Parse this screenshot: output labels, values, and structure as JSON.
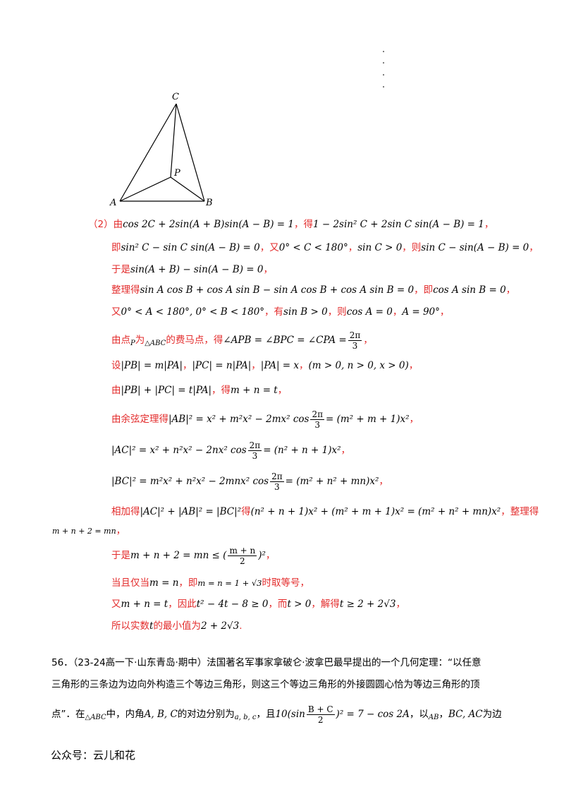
{
  "figure": {
    "label_C": "C",
    "label_P": "P",
    "label_A": "A",
    "label_B": "B"
  },
  "solution": {
    "l1_a": "（2）由",
    "l1_m1": "cos 2C + 2sin(A + B)sin(A − B) = 1",
    "l1_b": "，得",
    "l1_m2": "1 − 2sin² C + 2sin C sin(A − B) = 1",
    "l1_c": "，",
    "l2_a": "即",
    "l2_m1": "sin² C − sin C sin(A − B) = 0",
    "l2_b": "，又",
    "l2_m2": "0° < C < 180°",
    "l2_c": "，",
    "l2_m3": "sin C > 0",
    "l2_d": "，则",
    "l2_m4": "sin C − sin(A − B) = 0",
    "l2_e": "，",
    "l3_a": "于是",
    "l3_m1": "sin(A + B) − sin(A − B) = 0",
    "l3_b": "，",
    "l4_a": "整理得",
    "l4_m1": "sin A cos B + cos A sin B − sin A cos B + cos A sin B = 0",
    "l4_b": "，即",
    "l4_m2": "cos A sin B = 0",
    "l4_c": "，",
    "l5_a": "又",
    "l5_m1": "0° < A < 180°, 0° < B < 180°",
    "l5_b": "，有",
    "l5_m2": "sin B > 0",
    "l5_c": "，则",
    "l5_m3": "cos A = 0",
    "l5_d": "，",
    "l5_m4": "A = 90°",
    "l5_e": "，",
    "l6_a": "由点",
    "l6_m1": "P",
    "l6_b": "为",
    "l6_m2": "△ABC",
    "l6_c": "的费马点，得",
    "l6_m3": "∠APB = ∠BPC = ∠CPA =",
    "l6_num": "2π",
    "l6_den": "3",
    "l6_d": "，",
    "l7_a": "设",
    "l7_m1": "|PB| = m|PA|",
    "l7_b": "，",
    "l7_m2": "|PC| = n|PA|",
    "l7_c": "，",
    "l7_m3": "|PA| = x",
    "l7_d": "，",
    "l7_m4": "(m > 0, n > 0, x > 0)",
    "l7_e": "，",
    "l8_a": "由",
    "l8_m1": "|PB| + |PC| = t|PA|",
    "l8_b": "，得",
    "l8_m2": "m + n = t",
    "l8_c": "，",
    "l9_a": "由余弦定理得",
    "l9_m1": "|AB|² = x² + m²x² − 2mx² cos",
    "l9_num": "2π",
    "l9_den": "3",
    "l9_m2": "= (m² + m + 1)x²",
    "l9_b": "，",
    "l10_m1": "|AC|² = x² + n²x² − 2nx² cos",
    "l10_num": "2π",
    "l10_den": "3",
    "l10_m2": "= (n² + n + 1)x²",
    "l10_b": "，",
    "l11_m1": "|BC|² = m²x² + n²x² − 2mnx² cos",
    "l11_num": "2π",
    "l11_den": "3",
    "l11_m2": "= (m² + n² + mn)x²",
    "l11_b": "，",
    "l12_a": "相加得",
    "l12_m1": "|AC|² + |AB|² = |BC|²",
    "l12_b": "得",
    "l12_m2": "(n² + n + 1)x² + (m² + m + 1)x² = (m² + n² + mn)x²",
    "l12_c": "，整理得",
    "l13_m1": "m + n + 2 = mn",
    "l13_b": "，",
    "l14_a": "于是",
    "l14_m1": "m + n + 2 = mn ≤ (",
    "l14_num": "m + n",
    "l14_den": "2",
    "l14_m2": ")²",
    "l14_b": "，",
    "l15_a": "当且仅当",
    "l15_m1": "m = n",
    "l15_b": "，即",
    "l15_m2": "m = n = 1 + √3",
    "l15_c": "时取等号，",
    "l16_a": "又",
    "l16_m1": "m + n = t",
    "l16_b": "，因此",
    "l16_m2": "t² − 4t − 8 ≥ 0",
    "l16_c": "，而",
    "l16_m3": "t > 0",
    "l16_d": "，解得",
    "l16_m4": "t ≥ 2 + 2√3",
    "l16_e": "，",
    "l17_a": "所以实数",
    "l17_m1": "t",
    "l17_b": "的最小值为",
    "l17_m2": "2 + 2√3",
    "l17_c": "."
  },
  "question": {
    "q1": "56．（23-24高一下·山东青岛·期中）法国著名军事家拿破仑·波拿巴最早提出的一个几何定理：“以任意",
    "q2": "三角形的三条边为边向外构造三个等边三角形，则这三个等边三角形的外接圆圆心恰为等边三角形的顶",
    "q3_a": "点”．在",
    "q3_m1": "△ABC",
    "q3_b": "中，内角",
    "q3_m2": "A, B, C",
    "q3_c": "的对边分别为",
    "q3_m3": "a, b, c",
    "q3_d": "，且",
    "q3_m4a": "10(sin",
    "q3_num": "B + C",
    "q3_den": "2",
    "q3_m4b": ")² = 7 − cos 2A",
    "q3_e": "，以",
    "q3_m5": "AB",
    "q3_f": "，",
    "q3_m6": "BC, AC",
    "q3_g": "为边"
  },
  "footer": {
    "text": "公众号：云儿和花"
  }
}
